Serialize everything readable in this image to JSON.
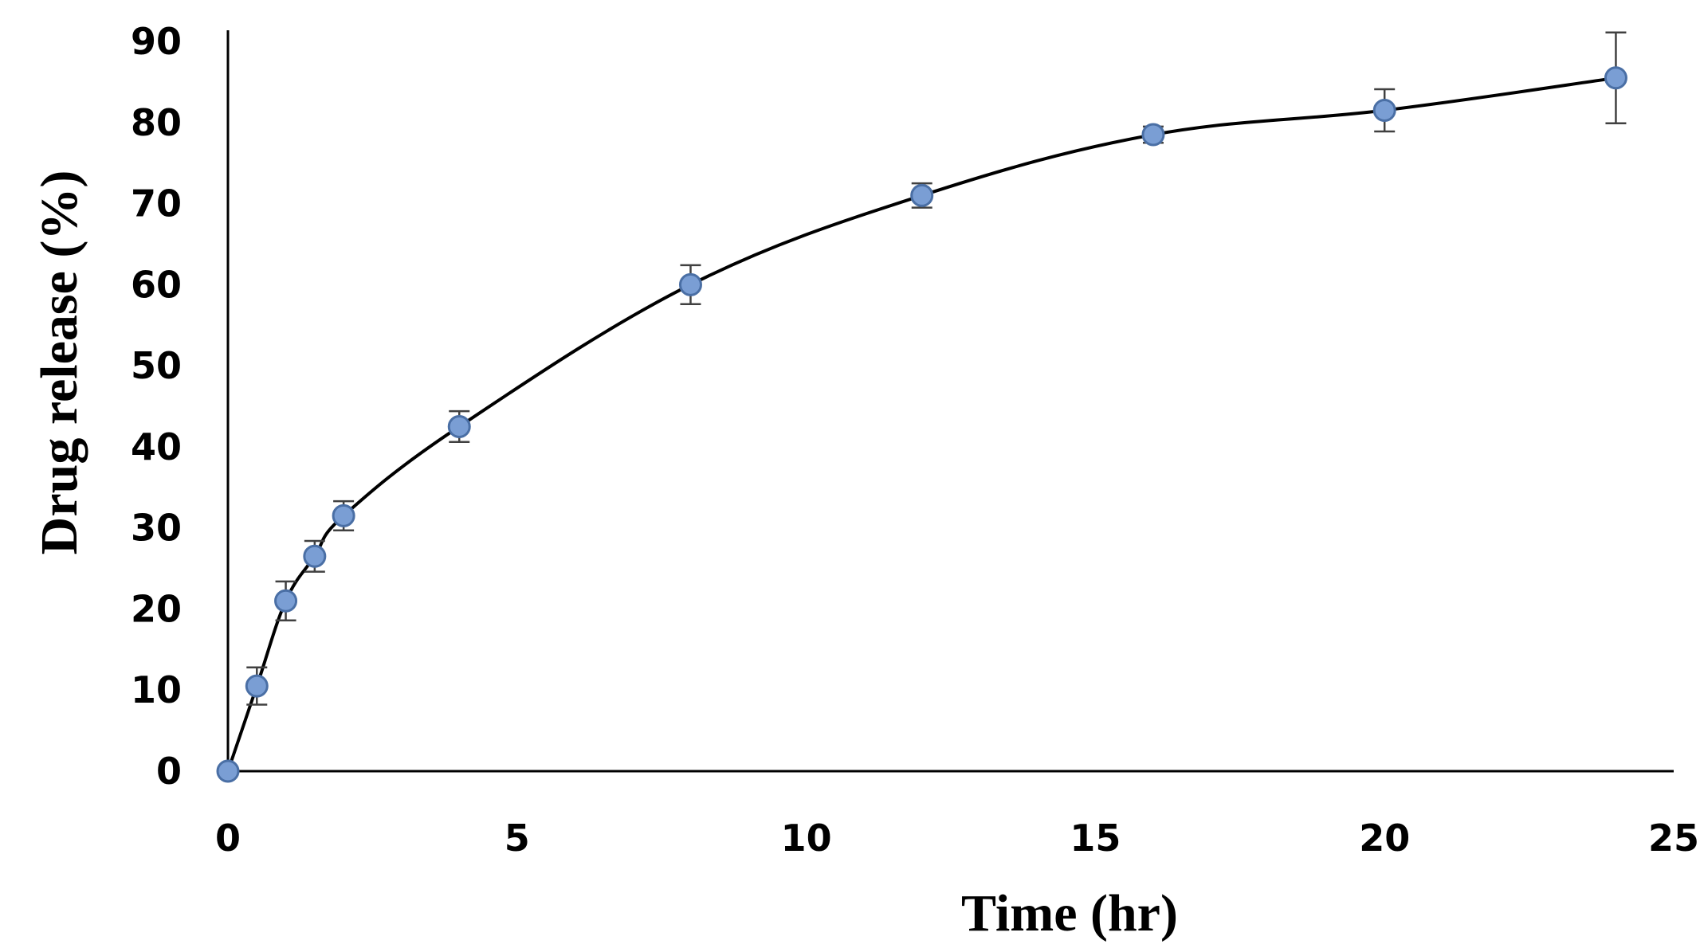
{
  "chart_data": {
    "type": "line",
    "title": "",
    "xlabel": "Time (hr)",
    "ylabel": "Drug release (%)",
    "xlim": [
      0,
      25
    ],
    "ylim": [
      0,
      90
    ],
    "x_ticks": [
      "0",
      "5",
      "10",
      "15",
      "20",
      "25"
    ],
    "y_ticks": [
      "0",
      "10",
      "20",
      "30",
      "40",
      "50",
      "60",
      "70",
      "80",
      "90"
    ],
    "grid": false,
    "legend": "none",
    "line_color": "#000000",
    "marker_fill": "#7a9ed4",
    "marker_edge": "#4a6fa5",
    "errorbar_color": "#404040",
    "series": [
      {
        "x": [
          0,
          0.5,
          1,
          1.5,
          2,
          4,
          8,
          12,
          16,
          20,
          24
        ],
        "y": [
          0,
          10.5,
          21,
          26.5,
          31.5,
          42.5,
          60,
          71,
          78.5,
          81.5,
          85.5
        ],
        "error": [
          0,
          2.3,
          2.4,
          1.9,
          1.8,
          1.9,
          2.4,
          1.5,
          1.0,
          2.6,
          5.6
        ]
      }
    ]
  }
}
